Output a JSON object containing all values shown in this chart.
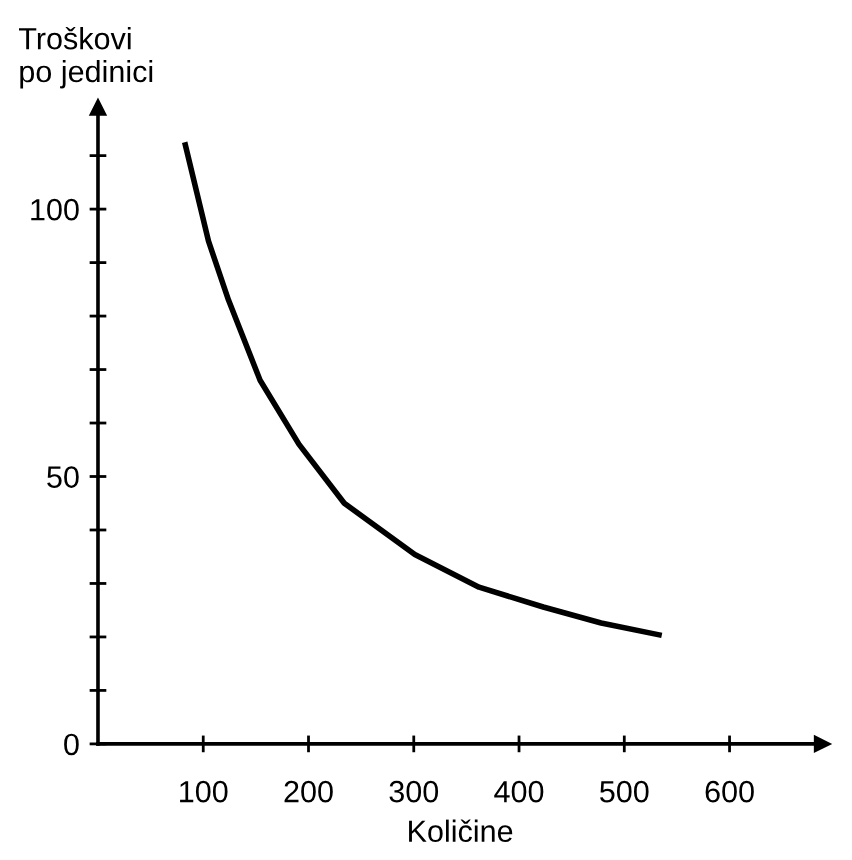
{
  "chart_data": {
    "type": "line",
    "xlabel": "Količine",
    "ylabel": "Troškovi\npo jedinici",
    "x": [
      83,
      105,
      124,
      154,
      191,
      234,
      301,
      362,
      423,
      478,
      533
    ],
    "series": [
      {
        "color": "#000000",
        "values": [
          112,
          94,
          83,
          68,
          56,
          45,
          35.4,
          29.3,
          25.6,
          22.6,
          20.4
        ]
      }
    ],
    "xlim": [
      0,
      688
    ],
    "ylim": [
      0,
      119
    ],
    "xticks": [
      100,
      200,
      300,
      400,
      500,
      600
    ],
    "yticks": [
      0,
      {
        "value": 10,
        "label": null
      },
      {
        "value": 20,
        "label": null
      },
      {
        "value": 30,
        "label": null
      },
      {
        "value": 40,
        "label": null
      },
      50,
      {
        "value": 60,
        "label": null
      },
      {
        "value": 70,
        "label": null
      },
      {
        "value": 80,
        "label": null
      },
      {
        "value": 90,
        "label": null
      },
      100,
      {
        "value": 110,
        "label": null
      }
    ],
    "grid": false,
    "legend": false,
    "marker": "none",
    "line_style": "solid"
  }
}
